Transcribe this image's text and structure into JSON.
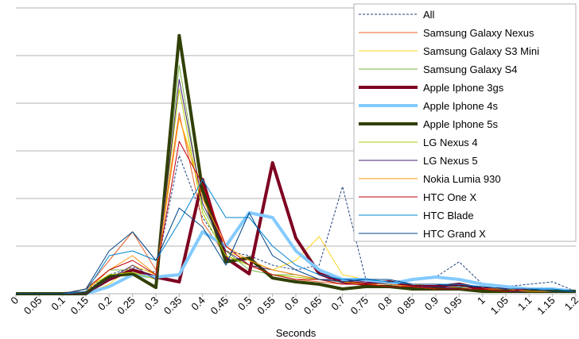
{
  "chart_data": {
    "type": "line",
    "xlabel": "Seconds",
    "x": [
      0,
      0.05,
      0.1,
      0.15,
      0.2,
      0.25,
      0.3,
      0.35,
      0.4,
      0.45,
      0.5,
      0.55,
      0.6,
      0.65,
      0.7,
      0.75,
      0.8,
      0.85,
      0.9,
      0.95,
      1,
      1.05,
      1.1,
      1.15,
      1.2
    ],
    "xlim": [
      0,
      1.2
    ],
    "xticks": [
      0,
      0.05,
      0.1,
      0.15,
      0.2,
      0.25,
      0.3,
      0.35,
      0.4,
      0.45,
      0.5,
      0.55,
      0.6,
      0.65,
      0.7,
      0.75,
      0.8,
      0.85,
      0.9,
      0.95,
      1,
      1.05,
      1.1,
      1.15,
      1.2
    ],
    "ylim": [
      0,
      6
    ],
    "yticks": [
      0,
      1,
      2,
      3,
      4,
      5,
      6
    ],
    "grid": true,
    "legend": "top-right",
    "series": [
      {
        "name": "All",
        "color": "#1f3f7f",
        "width": 1,
        "dashed": true,
        "values": [
          0,
          0,
          0,
          0.05,
          0.4,
          0.55,
          0.45,
          2.9,
          1.6,
          0.9,
          0.8,
          0.6,
          0.5,
          0.6,
          2.25,
          0.3,
          0.25,
          0.3,
          0.35,
          0.67,
          0.2,
          0.15,
          0.2,
          0.25,
          0.05
        ]
      },
      {
        "name": "Samsung Galaxy Nexus",
        "color": "#e8602c",
        "width": 1,
        "values": [
          0,
          0,
          0,
          0.1,
          0.7,
          1.3,
          0.5,
          3.8,
          1.5,
          0.8,
          0.6,
          0.4,
          0.3,
          0.25,
          0.2,
          0.2,
          0.15,
          0.15,
          0.1,
          0.15,
          0.1,
          0.1,
          0.1,
          0.05,
          0.05
        ]
      },
      {
        "name": "Samsung Galaxy S3 Mini",
        "color": "#ffd320",
        "width": 1,
        "values": [
          0,
          0,
          0,
          0,
          0.2,
          0.6,
          0.4,
          3.7,
          2.2,
          0.9,
          0.7,
          0.5,
          0.7,
          1.2,
          0.4,
          0.3,
          0.2,
          0.2,
          0.15,
          0.15,
          0.1,
          0.1,
          0.1,
          0.05,
          0.05
        ]
      },
      {
        "name": "Samsung Galaxy S4",
        "color": "#7ab648",
        "width": 1,
        "values": [
          0,
          0,
          0,
          0.1,
          0.5,
          0.5,
          0.3,
          4.8,
          1.8,
          0.9,
          0.5,
          0.4,
          0.4,
          0.3,
          0.2,
          0.2,
          0.2,
          0.15,
          0.1,
          0.1,
          0.1,
          0.1,
          0.05,
          0.05,
          0.05
        ]
      },
      {
        "name": "Apple Iphone 3gs",
        "color": "#7e0021",
        "width": 4,
        "values": [
          0,
          0,
          0,
          0.02,
          0.3,
          0.5,
          0.35,
          0.25,
          2.4,
          0.75,
          0.42,
          2.75,
          1.17,
          0.42,
          0.25,
          0.2,
          0.25,
          0.15,
          0.15,
          0.2,
          0.1,
          0.1,
          0.05,
          0.05,
          0.05
        ]
      },
      {
        "name": "Apple Iphone 4s",
        "color": "#83caff",
        "width": 4,
        "values": [
          0,
          0,
          0,
          0,
          0.15,
          0.4,
          0.35,
          0.4,
          1.3,
          1.0,
          1.7,
          1.6,
          0.9,
          0.5,
          0.3,
          0.3,
          0.2,
          0.3,
          0.35,
          0.3,
          0.2,
          0.15,
          0.1,
          0.1,
          0.05
        ]
      },
      {
        "name": "Apple Iphone 5s",
        "color": "#314004",
        "width": 4,
        "values": [
          0,
          0,
          0,
          0,
          0.37,
          0.42,
          0.13,
          5.42,
          2.17,
          0.67,
          0.75,
          0.33,
          0.25,
          0.2,
          0.1,
          0.15,
          0.15,
          0.1,
          0.1,
          0.1,
          0.05,
          0.05,
          0.05,
          0.05,
          0.05
        ]
      },
      {
        "name": "LG Nexus 4",
        "color": "#aecf00",
        "width": 1,
        "values": [
          0,
          0,
          0,
          0.1,
          0.4,
          0.45,
          0.3,
          4.3,
          1.7,
          0.8,
          0.6,
          0.4,
          0.35,
          0.3,
          0.25,
          0.2,
          0.2,
          0.15,
          0.1,
          0.1,
          0.1,
          0.05,
          0.05,
          0.05,
          0.05
        ]
      },
      {
        "name": "LG Nexus 5",
        "color": "#4b1f6f",
        "width": 1,
        "values": [
          0,
          0,
          0,
          0,
          0.3,
          0.6,
          0.3,
          4.5,
          1.9,
          0.9,
          0.6,
          0.5,
          0.4,
          0.3,
          0.3,
          0.25,
          0.2,
          0.15,
          0.15,
          0.1,
          0.1,
          0.05,
          0.05,
          0.05,
          0.05
        ]
      },
      {
        "name": "Nokia Lumia 930",
        "color": "#ff950e",
        "width": 1,
        "values": [
          0,
          0,
          0,
          0.05,
          0.5,
          0.8,
          0.4,
          3.7,
          2.0,
          1.0,
          0.7,
          0.5,
          0.4,
          0.3,
          0.25,
          0.2,
          0.2,
          0.15,
          0.1,
          0.1,
          0.1,
          0.1,
          0.05,
          0.05,
          0.05
        ]
      },
      {
        "name": "HTC One X",
        "color": "#c5000b",
        "width": 1,
        "values": [
          0,
          0,
          0,
          0.1,
          0.5,
          0.7,
          0.4,
          3.2,
          2.3,
          1.0,
          0.6,
          0.4,
          0.3,
          0.3,
          0.2,
          0.2,
          0.15,
          0.15,
          0.1,
          0.1,
          0.1,
          0.05,
          0.1,
          0.05,
          0.05
        ]
      },
      {
        "name": "HTC Blade",
        "color": "#0084d1",
        "width": 1,
        "values": [
          0,
          0,
          0,
          0.05,
          0.8,
          0.9,
          0.7,
          1.5,
          2.4,
          1.6,
          1.6,
          1.0,
          0.6,
          0.4,
          0.3,
          0.3,
          0.25,
          0.2,
          0.2,
          0.2,
          0.15,
          0.1,
          0.1,
          0.1,
          0.05
        ]
      },
      {
        "name": "HTC Grand X",
        "color": "#004586",
        "width": 1,
        "values": [
          0,
          0,
          0,
          0.1,
          0.9,
          1.3,
          0.7,
          1.8,
          1.4,
          0.6,
          1.7,
          0.8,
          0.5,
          0.3,
          0.25,
          0.3,
          0.3,
          0.2,
          0.2,
          0.15,
          0.15,
          0.1,
          0.1,
          0.05,
          0.05
        ]
      }
    ]
  }
}
